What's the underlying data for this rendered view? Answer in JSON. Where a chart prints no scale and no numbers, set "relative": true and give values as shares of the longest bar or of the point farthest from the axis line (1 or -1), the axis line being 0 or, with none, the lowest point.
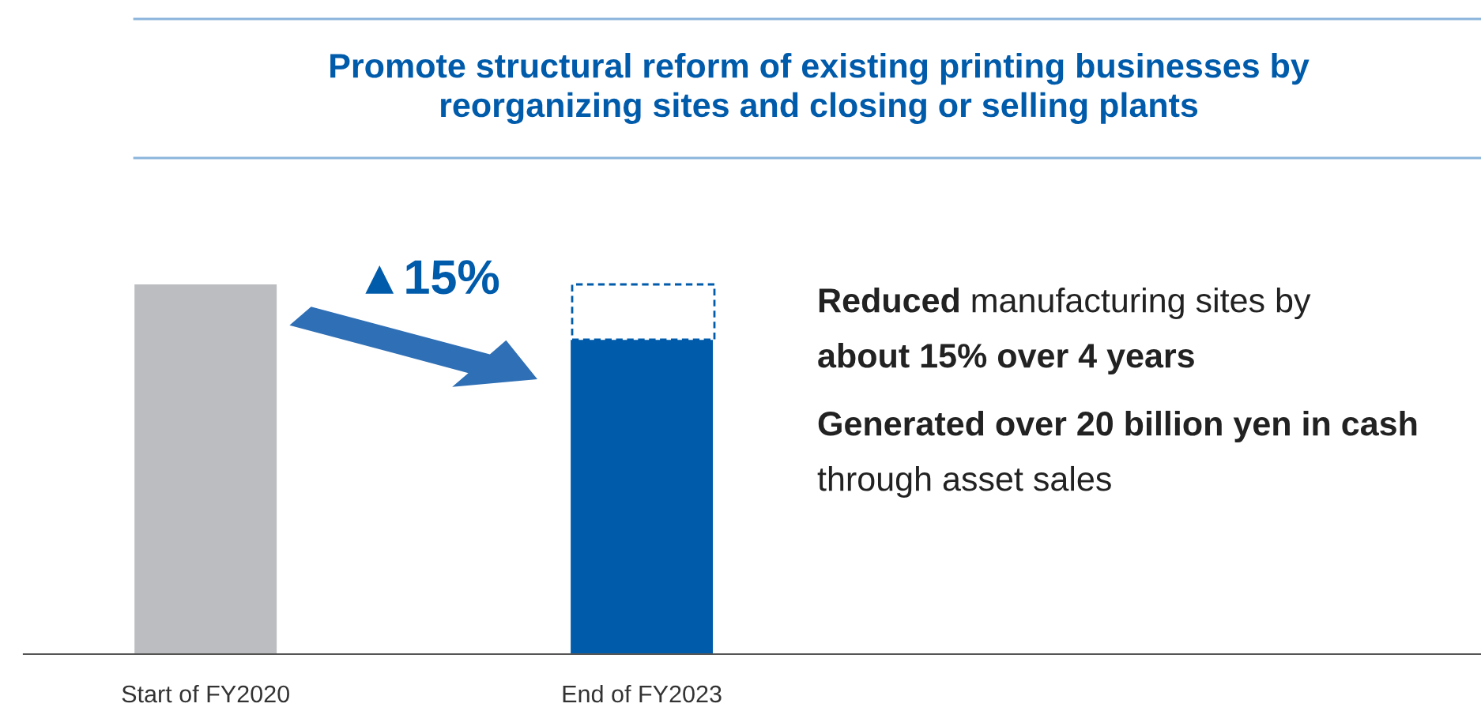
{
  "chart_data": {
    "type": "bar",
    "title": "Promote structural reform of existing printing businesses by\nreorganizing sites and closing or selling plants",
    "categories": [
      "Start of FY2020",
      "End of FY2023"
    ],
    "values": [
      1,
      0.85
    ],
    "colors": [
      "#bcbdc0",
      "#005bab"
    ],
    "relative": true,
    "grid": false,
    "annotations": [
      "▲15%",
      "Reduced",
      "manufacturing sites by",
      "about 15% over 4 years",
      "Generated over 20 billion yen in cash",
      "through asset sales"
    ]
  }
}
